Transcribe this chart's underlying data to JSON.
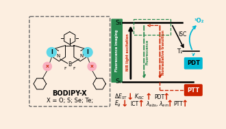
{
  "bg_color": "#fceee0",
  "green_box_color": "#2a8a50",
  "red_color": "#cc2200",
  "black_color": "#1a1a1a",
  "cyan_color": "#00b8d4",
  "pink_color": "#f8b0c0",
  "teal_iodine": "#60d8e8",
  "bodipy_text": "BODIPY-X",
  "x_text": "X = O; S; Se; Te;",
  "s1_label": "S₁",
  "s0_label": "S₀",
  "t1_label": "T₁",
  "isc_label": "ISC",
  "o2_label": "¹O₂",
  "pdt_label": "PDT",
  "ptt_label": "PTT",
  "fluorescence_imaging_label": "Fluorescence imaging",
  "nir_label": "NIR light excitation",
  "fluorescence_label": "Fluorescence",
  "nonrad_label": "Nonradiative transition"
}
